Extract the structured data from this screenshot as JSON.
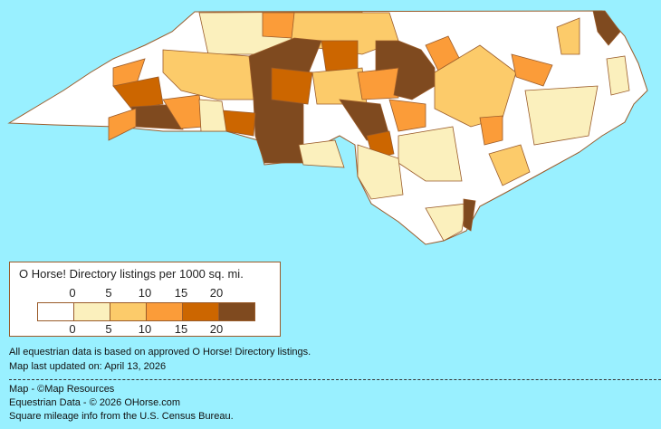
{
  "legend": {
    "title": "O Horse! Directory listings per 1000 sq. mi.",
    "ticks_top": [
      "0",
      "5",
      "10",
      "15",
      "20"
    ],
    "ticks_bottom": [
      "0",
      "5",
      "10",
      "15",
      "20"
    ],
    "colors": [
      "#FFFFFF",
      "#FBF0BD",
      "#FCCB6A",
      "#FB9C39",
      "#CC6600",
      "#7F4A1F"
    ]
  },
  "notes": {
    "data_basis": "All equestrian data is based on approved O Horse! Directory listings.",
    "updated": "Map last updated on: April 13, 2026"
  },
  "credits": {
    "map": "Map - ©Map Resources",
    "data": "Equestrian Data - © 2026 OHorse.com",
    "census": "Square mileage info from the U.S. Census Bureau."
  },
  "colors": {
    "background": "#99F0FF",
    "border": "#9A5B2A"
  }
}
